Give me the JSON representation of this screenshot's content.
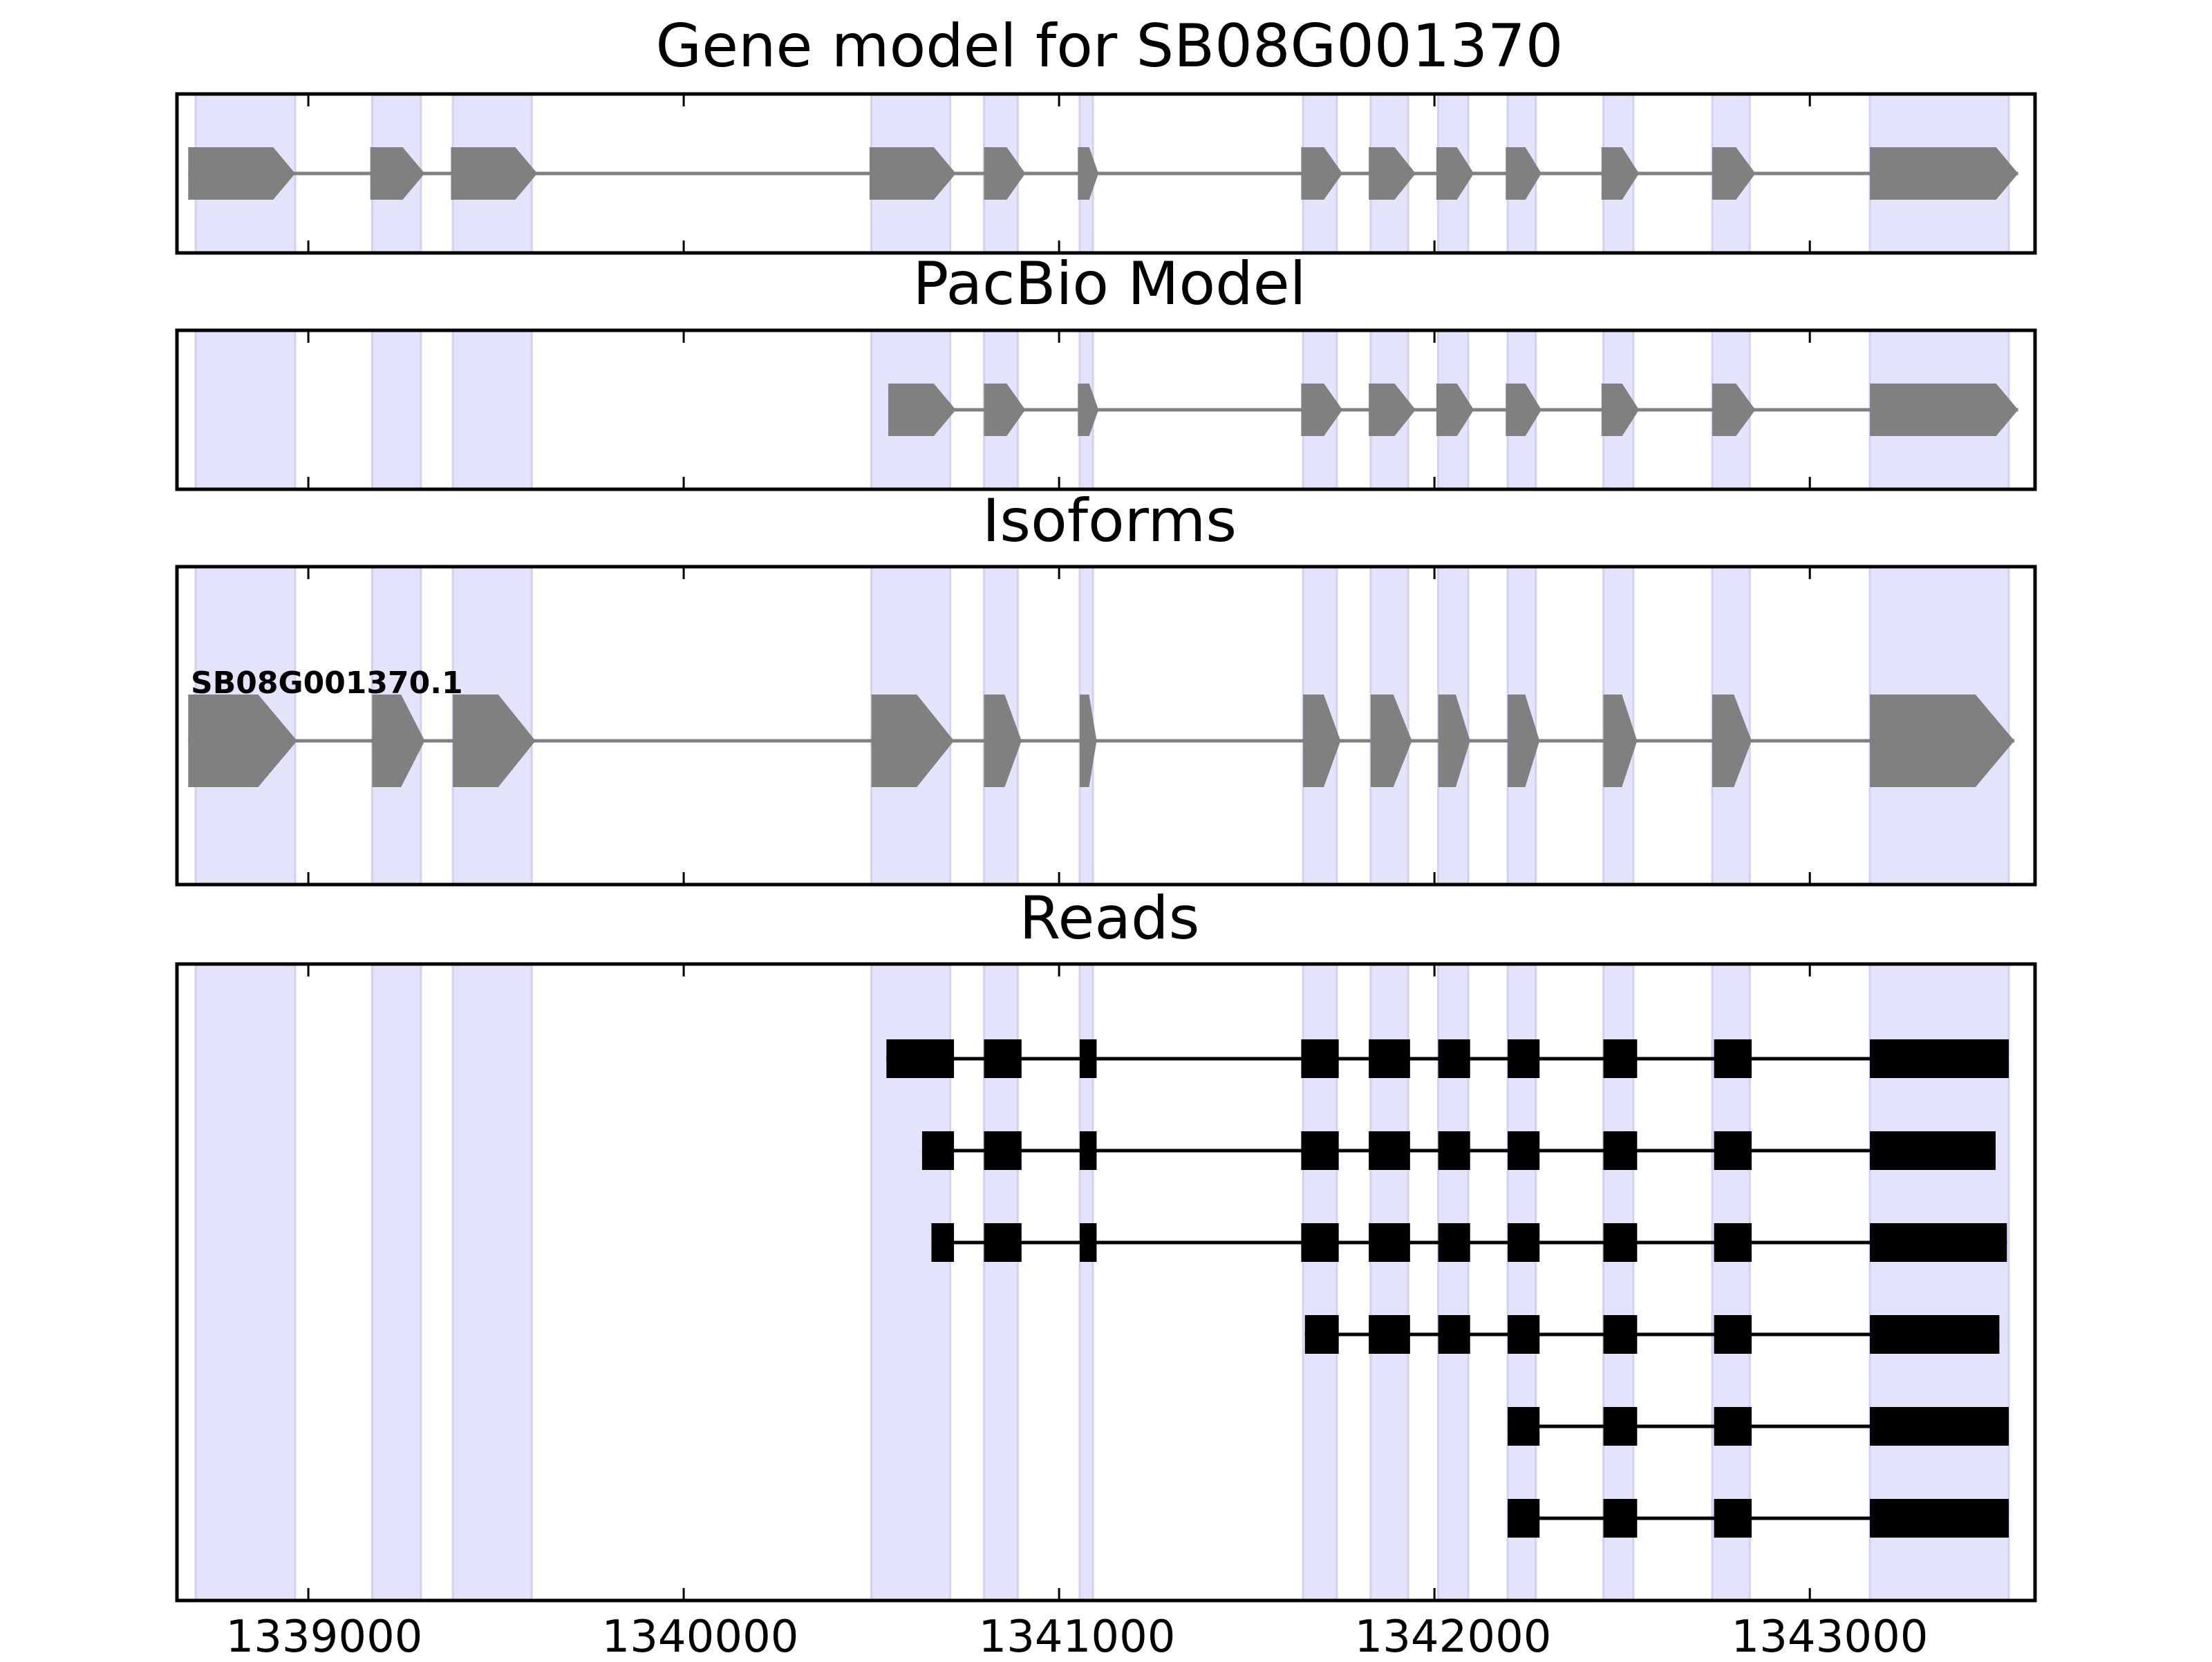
{
  "figure": {
    "colors": {
      "exon_model": "#808080",
      "intron_model": "#808080",
      "read": "#000000",
      "highlight": "#e3e3fb",
      "highlight_edge": "#d2d2f0",
      "frame": "#000000"
    },
    "exon_intervals": [
      [
        1338700,
        1338965
      ],
      [
        1339170,
        1339300
      ],
      [
        1339385,
        1339595
      ],
      [
        1340500,
        1340710
      ],
      [
        1340800,
        1340890
      ],
      [
        1341055,
        1341090
      ],
      [
        1341650,
        1341740
      ],
      [
        1341830,
        1341930
      ],
      [
        1342010,
        1342090
      ],
      [
        1342195,
        1342270
      ],
      [
        1342450,
        1342530
      ],
      [
        1342740,
        1342840
      ],
      [
        1343160,
        1343530
      ]
    ]
  },
  "x_axis": {
    "domain": [
      1338650,
      1343600
    ],
    "ticks": [
      1339000,
      1340000,
      1341000,
      1342000,
      1343000
    ],
    "tick_labels": [
      "1339000",
      "1340000",
      "1341000",
      "1342000",
      "1343000"
    ]
  },
  "panels": {
    "gene_model": {
      "title": "Gene model for SB08G001370",
      "exons": [
        [
          1338680,
          1338965
        ],
        [
          1339165,
          1339310
        ],
        [
          1339380,
          1339610
        ],
        [
          1340495,
          1340725
        ],
        [
          1340800,
          1340910
        ],
        [
          1341050,
          1341105
        ],
        [
          1341645,
          1341755
        ],
        [
          1341825,
          1341950
        ],
        [
          1342005,
          1342105
        ],
        [
          1342190,
          1342285
        ],
        [
          1342445,
          1342545
        ],
        [
          1342740,
          1342855
        ],
        [
          1343160,
          1343555
        ]
      ]
    },
    "pacbio_model": {
      "title": "PacBio Model",
      "exons": [
        [
          1340545,
          1340725
        ],
        [
          1340800,
          1340910
        ],
        [
          1341050,
          1341105
        ],
        [
          1341645,
          1341755
        ],
        [
          1341825,
          1341950
        ],
        [
          1342005,
          1342105
        ],
        [
          1342190,
          1342285
        ],
        [
          1342445,
          1342545
        ],
        [
          1342740,
          1342855
        ],
        [
          1343160,
          1343555
        ]
      ]
    },
    "isoforms": {
      "title": "Isoforms",
      "isoform_label": "SB08G001370.1",
      "exons": [
        [
          1338680,
          1338970
        ],
        [
          1339170,
          1339310
        ],
        [
          1339385,
          1339605
        ],
        [
          1340500,
          1340720
        ],
        [
          1340800,
          1340900
        ],
        [
          1341055,
          1341100
        ],
        [
          1341650,
          1341750
        ],
        [
          1341830,
          1341940
        ],
        [
          1342010,
          1342095
        ],
        [
          1342195,
          1342280
        ],
        [
          1342450,
          1342540
        ],
        [
          1342740,
          1342845
        ],
        [
          1343160,
          1343545
        ]
      ]
    },
    "reads": {
      "title": "Reads",
      "reads": [
        [
          [
            1340540,
            1340720
          ],
          [
            1340800,
            1340900
          ],
          [
            1341055,
            1341100
          ],
          [
            1341645,
            1341745
          ],
          [
            1341825,
            1341935
          ],
          [
            1342010,
            1342095
          ],
          [
            1342195,
            1342280
          ],
          [
            1342450,
            1342540
          ],
          [
            1342745,
            1342845
          ],
          [
            1343160,
            1343530
          ]
        ],
        [
          [
            1340635,
            1340720
          ],
          [
            1340800,
            1340900
          ],
          [
            1341055,
            1341100
          ],
          [
            1341645,
            1341745
          ],
          [
            1341825,
            1341935
          ],
          [
            1342010,
            1342095
          ],
          [
            1342195,
            1342280
          ],
          [
            1342450,
            1342540
          ],
          [
            1342745,
            1342845
          ],
          [
            1343160,
            1343495
          ]
        ],
        [
          [
            1340660,
            1340720
          ],
          [
            1340800,
            1340900
          ],
          [
            1341055,
            1341100
          ],
          [
            1341645,
            1341745
          ],
          [
            1341825,
            1341935
          ],
          [
            1342010,
            1342095
          ],
          [
            1342195,
            1342280
          ],
          [
            1342450,
            1342540
          ],
          [
            1342745,
            1342845
          ],
          [
            1343160,
            1343525
          ]
        ],
        [
          [
            1341655,
            1341745
          ],
          [
            1341825,
            1341935
          ],
          [
            1342010,
            1342095
          ],
          [
            1342195,
            1342280
          ],
          [
            1342450,
            1342540
          ],
          [
            1342745,
            1342845
          ],
          [
            1343160,
            1343505
          ]
        ],
        [
          [
            1342195,
            1342280
          ],
          [
            1342450,
            1342540
          ],
          [
            1342745,
            1342845
          ],
          [
            1343160,
            1343530
          ]
        ],
        [
          [
            1342195,
            1342280
          ],
          [
            1342450,
            1342540
          ],
          [
            1342745,
            1342845
          ],
          [
            1343160,
            1343530
          ]
        ]
      ]
    }
  }
}
